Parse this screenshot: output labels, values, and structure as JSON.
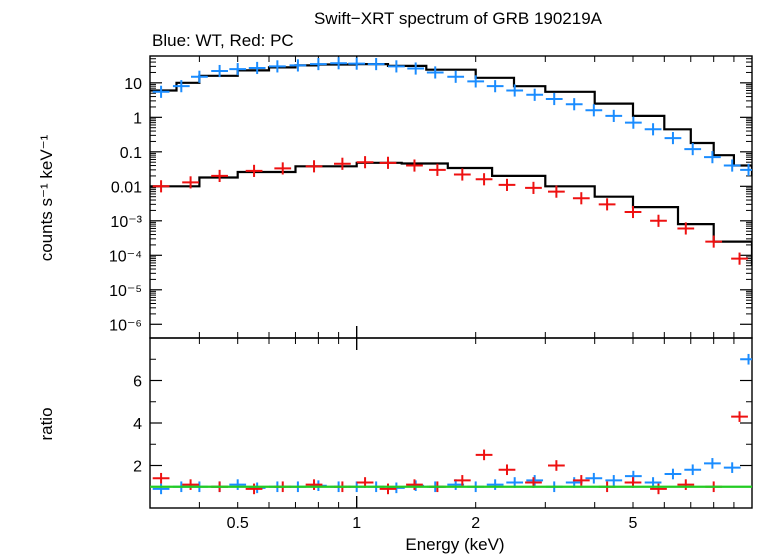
{
  "title": "Swift−XRT spectrum of GRB 190219A",
  "subtitle": "Blue: WT, Red: PC",
  "colors": {
    "wt": "#1a8cff",
    "pc": "#ee1111",
    "model": "#000000",
    "unity": "#22cc22"
  },
  "chart_data": [
    {
      "type": "scatter",
      "panel": "spectrum",
      "xlabel": "Energy (keV)",
      "ylabel": "counts s⁻¹ keV⁻¹",
      "xscale": "log",
      "yscale": "log",
      "xlim": [
        0.3,
        10
      ],
      "ylim": [
        4e-07,
        60
      ],
      "ytick_values": [
        10,
        1,
        0.1,
        0.01,
        0.001,
        0.0001,
        1e-05,
        1e-06
      ],
      "ytick_labels": [
        "10",
        "1",
        "0.1",
        "0.01",
        "10⁻³",
        "10⁻⁴",
        "10⁻⁵",
        "10⁻⁶"
      ],
      "series": [
        {
          "name": "WT",
          "color": "#1a8cff",
          "x": [
            0.32,
            0.36,
            0.4,
            0.45,
            0.5,
            0.56,
            0.63,
            0.71,
            0.8,
            0.9,
            1.0,
            1.12,
            1.26,
            1.41,
            1.58,
            1.78,
            2.0,
            2.24,
            2.51,
            2.82,
            3.16,
            3.55,
            3.98,
            4.47,
            5.01,
            5.62,
            6.31,
            7.08,
            7.94,
            8.91,
            9.8
          ],
          "y": [
            5.5,
            8,
            15,
            22,
            25,
            27,
            30,
            32,
            35,
            37,
            36,
            35,
            30,
            26,
            20,
            15,
            11,
            8,
            6,
            4.5,
            3.4,
            2.4,
            1.6,
            1.1,
            0.7,
            0.45,
            0.25,
            0.12,
            0.07,
            0.04,
            0.03
          ]
        },
        {
          "name": "PC",
          "color": "#ee1111",
          "x": [
            0.32,
            0.38,
            0.45,
            0.55,
            0.65,
            0.78,
            0.92,
            1.05,
            1.2,
            1.4,
            1.6,
            1.85,
            2.1,
            2.4,
            2.8,
            3.2,
            3.7,
            4.3,
            5.0,
            5.8,
            6.8,
            8.0,
            9.3
          ],
          "y": [
            0.01,
            0.013,
            0.02,
            0.028,
            0.033,
            0.038,
            0.045,
            0.05,
            0.048,
            0.04,
            0.03,
            0.022,
            0.016,
            0.011,
            0.009,
            0.007,
            0.0045,
            0.003,
            0.0018,
            0.001,
            0.0006,
            0.00025,
            8e-05
          ]
        }
      ],
      "model_wt": {
        "x": [
          0.3,
          0.35,
          0.4,
          0.5,
          0.6,
          0.7,
          0.8,
          1.0,
          1.2,
          1.5,
          2.0,
          2.5,
          3.0,
          4.0,
          5.0,
          6.0,
          7.0,
          8.0,
          9.0,
          10
        ],
        "y": [
          6,
          10,
          16,
          23,
          28,
          32,
          34,
          35,
          31,
          24,
          14,
          8,
          5.5,
          2.5,
          1.1,
          0.45,
          0.18,
          0.08,
          0.04,
          0.02
        ]
      },
      "model_pc": {
        "x": [
          0.3,
          0.4,
          0.5,
          0.7,
          1.0,
          1.3,
          1.7,
          2.2,
          3.0,
          4.0,
          5.0,
          6.5,
          8.0,
          10
        ],
        "y": [
          0.01,
          0.018,
          0.026,
          0.038,
          0.048,
          0.046,
          0.034,
          0.02,
          0.01,
          0.005,
          0.0025,
          0.0008,
          0.00025,
          5e-05
        ]
      }
    },
    {
      "type": "scatter",
      "panel": "ratio",
      "xlabel": "Energy (keV)",
      "ylabel": "ratio",
      "xscale": "log",
      "yscale": "linear",
      "xlim": [
        0.3,
        10
      ],
      "ylim": [
        0,
        8
      ],
      "ytick_values": [
        2,
        4,
        6
      ],
      "ytick_labels": [
        "2",
        "4",
        "6"
      ],
      "xtick_values": [
        0.5,
        1,
        2,
        5
      ],
      "xtick_labels": [
        "0.5",
        "1",
        "2",
        "5"
      ],
      "unity": 1.0,
      "series": [
        {
          "name": "WT",
          "color": "#1a8cff",
          "x": [
            0.32,
            0.36,
            0.4,
            0.45,
            0.5,
            0.56,
            0.63,
            0.71,
            0.8,
            0.9,
            1.0,
            1.12,
            1.26,
            1.41,
            1.58,
            1.78,
            2.0,
            2.24,
            2.51,
            2.82,
            3.16,
            3.55,
            3.98,
            4.47,
            5.01,
            5.62,
            6.31,
            7.08,
            7.94,
            8.91,
            9.8
          ],
          "y": [
            0.9,
            1.0,
            1.0,
            1.0,
            1.1,
            0.95,
            1.0,
            1.0,
            1.05,
            1.0,
            1.0,
            1.0,
            0.95,
            1.05,
            1.0,
            1.1,
            1.0,
            1.1,
            1.2,
            1.3,
            1.0,
            1.2,
            1.4,
            1.3,
            1.5,
            1.2,
            1.6,
            1.8,
            2.1,
            1.9,
            7.0
          ]
        },
        {
          "name": "PC",
          "color": "#ee1111",
          "x": [
            0.32,
            0.38,
            0.45,
            0.55,
            0.65,
            0.78,
            0.92,
            1.05,
            1.2,
            1.4,
            1.6,
            1.85,
            2.1,
            2.4,
            2.8,
            3.2,
            3.7,
            4.3,
            5.0,
            5.8,
            6.8,
            8.0,
            9.3
          ],
          "y": [
            1.4,
            1.1,
            1.0,
            0.9,
            1.0,
            1.1,
            1.0,
            1.2,
            0.9,
            1.1,
            1.0,
            1.3,
            2.5,
            1.8,
            1.2,
            2.0,
            1.3,
            1.0,
            1.2,
            0.9,
            1.1,
            1.0,
            4.3
          ]
        }
      ]
    }
  ]
}
